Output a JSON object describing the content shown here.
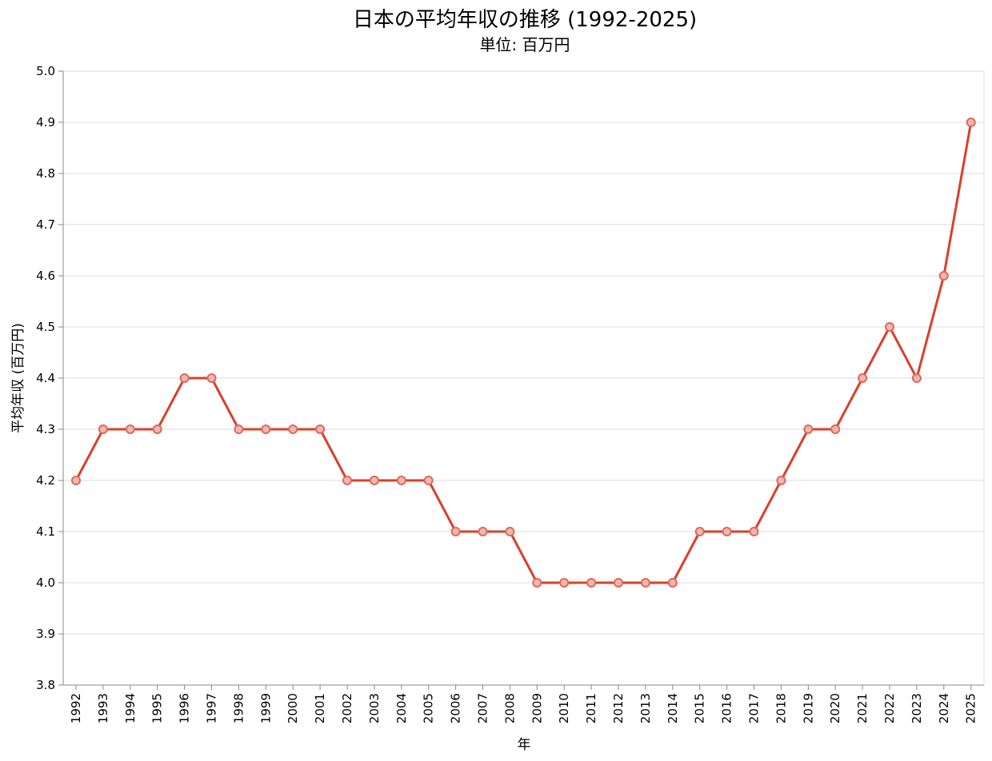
{
  "chart_data": {
    "type": "line",
    "title": "日本の平均年収の推移 (1992-2025)",
    "subtitle": "単位: 百万円",
    "xlabel": "年",
    "ylabel": "平均年収 (百万円)",
    "ylim": [
      3.8,
      5.0
    ],
    "yticks": [
      "3.8",
      "3.9",
      "4.0",
      "4.1",
      "4.2",
      "4.3",
      "4.4",
      "4.5",
      "4.6",
      "4.7",
      "4.8",
      "4.9",
      "5.0"
    ],
    "grid": true,
    "legend": "none",
    "x": [
      "1992",
      "1993",
      "1994",
      "1995",
      "1996",
      "1997",
      "1998",
      "1999",
      "2000",
      "2001",
      "2002",
      "2003",
      "2004",
      "2005",
      "2006",
      "2007",
      "2008",
      "2009",
      "2010",
      "2011",
      "2012",
      "2013",
      "2014",
      "2015",
      "2016",
      "2017",
      "2018",
      "2019",
      "2020",
      "2021",
      "2022",
      "2023",
      "2024",
      "2025"
    ],
    "values": [
      4.2,
      4.3,
      4.3,
      4.3,
      4.4,
      4.4,
      4.3,
      4.3,
      4.3,
      4.3,
      4.2,
      4.2,
      4.2,
      4.2,
      4.1,
      4.1,
      4.1,
      4.0,
      4.0,
      4.0,
      4.0,
      4.0,
      4.0,
      4.1,
      4.1,
      4.1,
      4.2,
      4.3,
      4.3,
      4.4,
      4.5,
      4.4,
      4.6,
      4.9
    ],
    "colors": {
      "line": "#d9402b",
      "point_stroke": "#e0685a",
      "point_fill": "#f2b8b0"
    }
  }
}
